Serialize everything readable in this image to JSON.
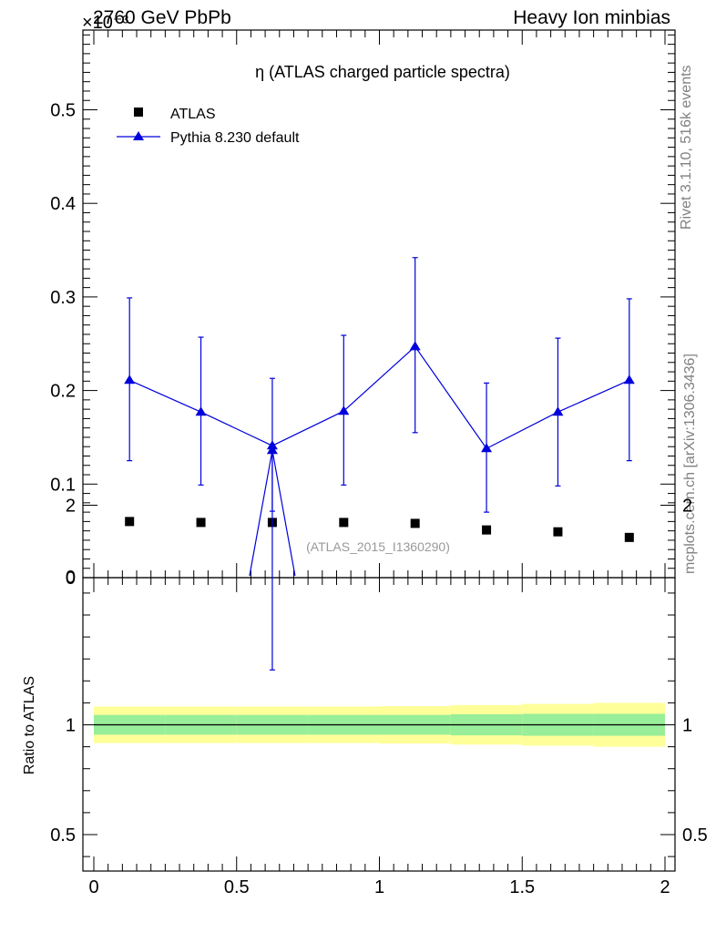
{
  "header": {
    "energy_label": "2760 GeV PbPb",
    "process_label": "Heavy Ion minbias",
    "exponent_label": "×10⁻³"
  },
  "sidebar": {
    "rivet_label": "Rivet 3.1.10,  516k events",
    "source_label": "mcplots.cern.ch [arXiv:1306.3436]"
  },
  "chart_data": [
    {
      "type": "scatter",
      "title": "η (ATLAS charged particle spectra)",
      "analysis_tag": "(ATLAS_2015_I1360290)",
      "xlabel": "",
      "ylabel": "",
      "xlim": [
        0,
        2
      ],
      "ylim": [
        0,
        0.58
      ],
      "y_scale_factor": "×10⁻³",
      "yticks": [
        0,
        0.1,
        0.2,
        0.3,
        0.4,
        0.5
      ],
      "ytick_labels": [
        "0",
        "0.1",
        "0.2",
        "0.3",
        "0.4",
        "0.5"
      ],
      "legend_position": "top-left",
      "series": [
        {
          "name": "ATLAS",
          "marker": "square",
          "color": "#000000",
          "x": [
            0.125,
            0.375,
            0.625,
            0.875,
            1.125,
            1.375,
            1.625,
            1.875
          ],
          "y": [
            0.06,
            0.059,
            0.059,
            0.059,
            0.058,
            0.051,
            0.049,
            0.043
          ]
        },
        {
          "name": "Pythia 8.230 default",
          "marker": "triangle",
          "color": "#0000dd",
          "x": [
            0.125,
            0.375,
            0.625,
            0.875,
            1.125,
            1.375,
            1.625,
            1.875
          ],
          "y": [
            0.211,
            0.177,
            0.141,
            0.178,
            0.247,
            0.138,
            0.177,
            0.211
          ],
          "y_err_low": [
            0.086,
            0.078,
            0.07,
            0.079,
            0.092,
            0.068,
            0.079,
            0.086
          ],
          "y_err_high": [
            0.088,
            0.08,
            0.072,
            0.081,
            0.095,
            0.07,
            0.079,
            0.087
          ]
        }
      ]
    },
    {
      "type": "scatter",
      "xlabel": "",
      "ylabel": "Ratio to ATLAS",
      "xlim": [
        0,
        2
      ],
      "ylim": [
        0.35,
        2.3
      ],
      "xticks": [
        0,
        0.5,
        1,
        1.5,
        2
      ],
      "xtick_labels": [
        "0",
        "0.5",
        "1",
        "1.5",
        "2"
      ],
      "yticks": [
        0.5,
        1,
        2
      ],
      "ytick_labels": [
        "0.5",
        "1",
        "2"
      ],
      "bands": [
        {
          "name": "yellow",
          "color": "#ffff99",
          "edges": [
            0,
            0.25,
            0.5,
            0.75,
            1.0,
            1.25,
            1.5,
            1.75,
            2.0
          ],
          "low": [
            0.917,
            0.917,
            0.917,
            0.917,
            0.915,
            0.91,
            0.905,
            0.9
          ],
          "high": [
            1.083,
            1.083,
            1.083,
            1.083,
            1.085,
            1.09,
            1.095,
            1.1
          ]
        },
        {
          "name": "green",
          "color": "#99ee99",
          "edges": [
            0,
            0.25,
            0.5,
            0.75,
            1.0,
            1.25,
            1.5,
            1.75,
            2.0
          ],
          "low": [
            0.955,
            0.955,
            0.955,
            0.955,
            0.955,
            0.952,
            0.95,
            0.95
          ],
          "high": [
            1.045,
            1.045,
            1.045,
            1.045,
            1.045,
            1.048,
            1.05,
            1.05
          ]
        }
      ],
      "series": [
        {
          "name": "Pythia 8.230 default",
          "marker": "triangle",
          "color": "#0000dd",
          "x": [
            0.625
          ],
          "y": [
            2.25
          ],
          "y_err_low": [
            1.0
          ],
          "y_err_high": [
            0.2
          ]
        }
      ]
    }
  ]
}
